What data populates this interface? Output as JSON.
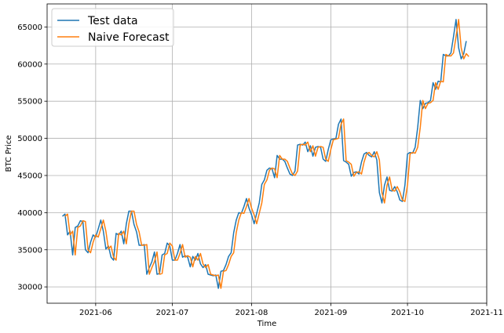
{
  "chart_data": {
    "type": "line",
    "xlabel": "Time",
    "ylabel": "BTC Price",
    "x_ticks": [
      "2021-06",
      "2021-07",
      "2021-08",
      "2021-09",
      "2021-10",
      "2021-11"
    ],
    "x_tick_dates": [
      "2021-06-01",
      "2021-07-01",
      "2021-08-01",
      "2021-09-01",
      "2021-10-01",
      "2021-11-01"
    ],
    "y_ticks": [
      30000,
      35000,
      40000,
      45000,
      50000,
      55000,
      60000,
      65000
    ],
    "xlim": [
      "2021-05-13",
      "2021-11-01"
    ],
    "ylim": [
      27800,
      68100
    ],
    "grid": true,
    "legend_position": "top-left",
    "series": [
      {
        "name": "Test data",
        "color": "#1f77b4",
        "start_date": "2021-05-19",
        "values": [
          39500,
          39800,
          37000,
          37500,
          34300,
          38000,
          38200,
          38900,
          38800,
          35000,
          34600,
          36000,
          37000,
          36700,
          37800,
          39000,
          37500,
          35100,
          35500,
          34000,
          33600,
          37200,
          37000,
          37500,
          35800,
          38500,
          40200,
          40200,
          38400,
          37400,
          35600,
          35600,
          35700,
          31700,
          32600,
          33400,
          34700,
          31700,
          31800,
          34300,
          34500,
          35900,
          35500,
          33600,
          33600,
          34500,
          35700,
          34000,
          34200,
          34000,
          32700,
          34100,
          33600,
          34500,
          33100,
          32600,
          33000,
          31700,
          31600,
          31500,
          31600,
          29800,
          32100,
          32200,
          33000,
          34100,
          34600,
          37300,
          39000,
          40000,
          39900,
          40800,
          41900,
          40600,
          39700,
          38500,
          39900,
          41300,
          43800,
          44400,
          45700,
          46000,
          45900,
          44700,
          47700,
          47200,
          47200,
          46900,
          46000,
          45200,
          45000,
          45600,
          49100,
          49200,
          49100,
          49500,
          48200,
          49000,
          47600,
          48800,
          48900,
          48800,
          47200,
          46900,
          48500,
          49800,
          49900,
          50000,
          51900,
          52600,
          47000,
          46800,
          46500,
          44900,
          45400,
          45500,
          45200,
          46800,
          47900,
          48100,
          47700,
          47500,
          48200,
          47100,
          42700,
          41300,
          43700,
          44800,
          43000,
          42900,
          43500,
          42800,
          41700,
          41500,
          43700,
          47900,
          48100,
          48000,
          48800,
          51500,
          55100,
          54000,
          54700,
          54800,
          55100,
          57500,
          56600,
          57700,
          57600,
          61300,
          61100,
          61100,
          61500,
          63700,
          66000,
          62200,
          60700,
          61400,
          63100
        ]
      },
      {
        "name": "Naive Forecast",
        "color": "#ff7f0e",
        "start_date": "2021-05-20",
        "values": [
          39500,
          39800,
          37000,
          37500,
          34300,
          38000,
          38200,
          38900,
          38800,
          35000,
          34600,
          36000,
          37000,
          36700,
          37800,
          39000,
          37500,
          35100,
          35500,
          34000,
          33600,
          37200,
          37000,
          37500,
          35800,
          38500,
          40200,
          40200,
          38400,
          37400,
          35600,
          35600,
          35700,
          31700,
          32600,
          33400,
          34700,
          31700,
          31800,
          34300,
          34500,
          35900,
          35500,
          33600,
          33600,
          34500,
          35700,
          34000,
          34200,
          34000,
          32700,
          34100,
          33600,
          34500,
          33100,
          32600,
          33000,
          31700,
          31600,
          31500,
          31600,
          29800,
          32100,
          32200,
          33000,
          34100,
          34600,
          37300,
          39000,
          40000,
          39900,
          40800,
          41900,
          40600,
          39700,
          38500,
          39900,
          41300,
          43800,
          44400,
          45700,
          46000,
          45900,
          44700,
          47700,
          47200,
          47200,
          46900,
          46000,
          45200,
          45000,
          45600,
          49100,
          49200,
          49100,
          49500,
          48200,
          49000,
          47600,
          48800,
          48900,
          48800,
          47200,
          46900,
          48500,
          49800,
          49900,
          50000,
          51900,
          52600,
          47000,
          46800,
          46500,
          44900,
          45400,
          45500,
          45200,
          46800,
          47900,
          48100,
          47700,
          47500,
          48200,
          47100,
          42700,
          41300,
          43700,
          44800,
          43000,
          42900,
          43500,
          42800,
          41700,
          41500,
          43700,
          47900,
          48100,
          48000,
          48800,
          51500,
          55100,
          54000,
          54700,
          54800,
          55100,
          57500,
          56600,
          57700,
          57600,
          61300,
          61100,
          61100,
          61500,
          63700,
          66000,
          62200,
          60700,
          61400,
          61000
        ]
      }
    ]
  }
}
